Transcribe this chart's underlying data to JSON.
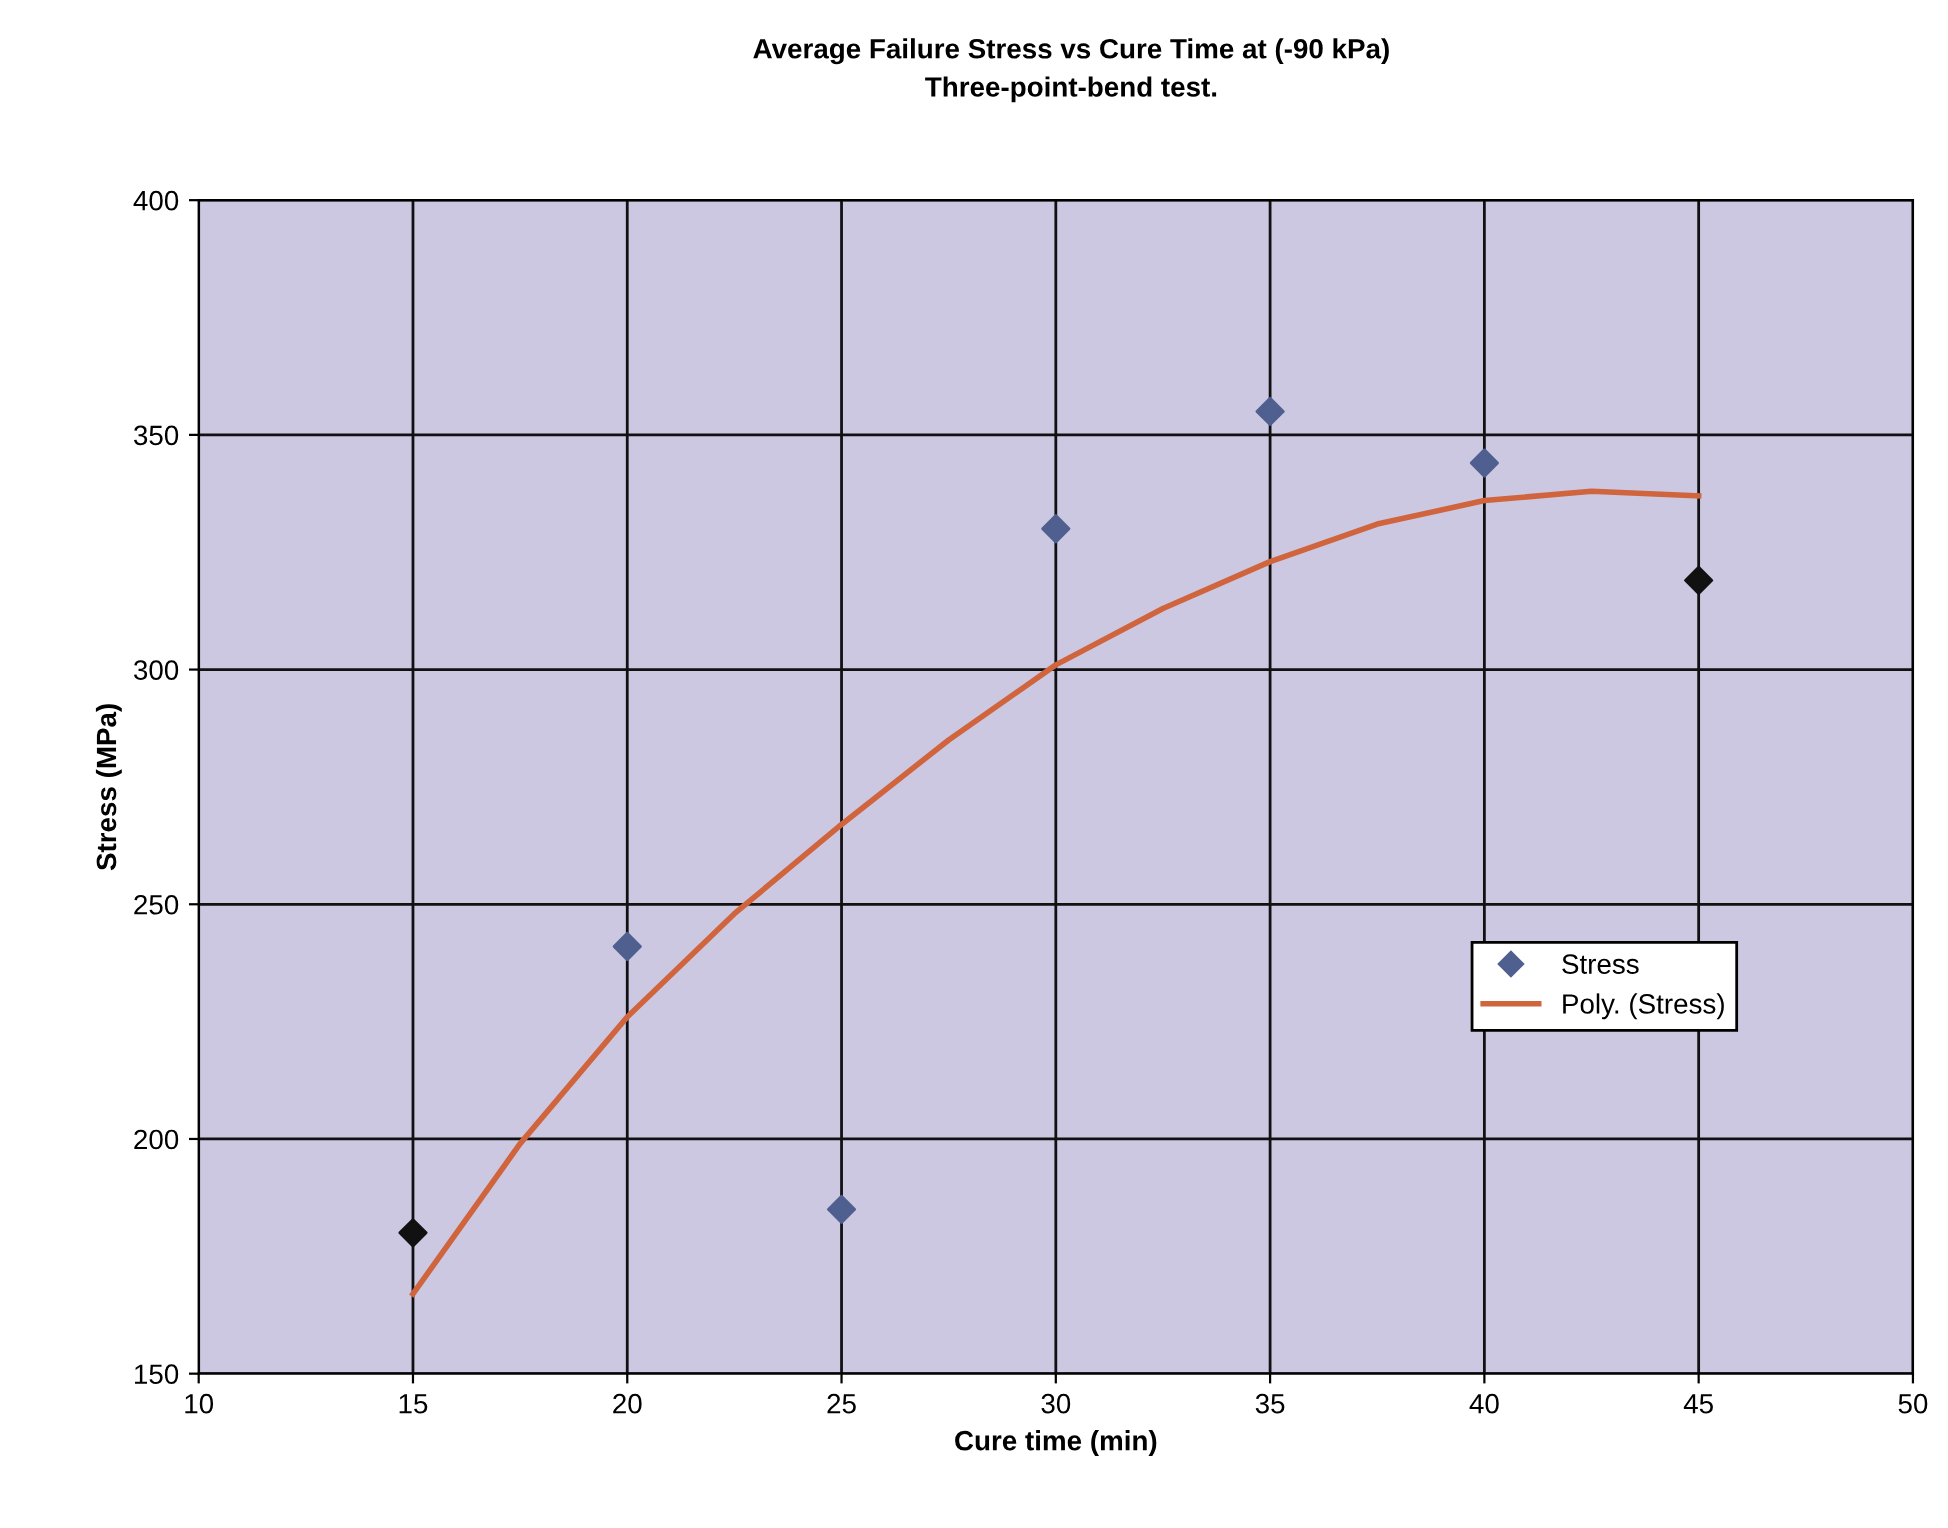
{
  "chart_data": {
    "type": "scatter",
    "title": "Average Failure Stress vs Cure Time at (-90 kPa)",
    "subtitle": "Three-point-bend test.",
    "xlabel": "Cure time (min)",
    "ylabel": "Stress (MPa)",
    "x": [
      15,
      20,
      25,
      30,
      35,
      40,
      45
    ],
    "series": [
      {
        "name": "Stress",
        "color": "#4f5f8f",
        "colors": [
          "#111111",
          "#4f5f8f",
          "#4f5f8f",
          "#4f5f8f",
          "#4f5f8f",
          "#4f5f8f",
          "#111111"
        ],
        "marker": "diamond",
        "values": [
          180,
          241,
          185,
          330,
          355,
          344,
          319
        ]
      },
      {
        "name": "Poly. (Stress)",
        "type": "line",
        "color": "#d0643c",
        "x": [
          15,
          17.5,
          20,
          22.5,
          25,
          27.5,
          30,
          32.5,
          35,
          37.5,
          40,
          42.5,
          45
        ],
        "values": [
          167,
          199,
          226,
          248,
          267,
          285,
          301,
          313,
          323,
          331,
          336,
          338,
          337
        ]
      }
    ],
    "xlim": [
      10,
      50
    ],
    "xticks": [
      10,
      15,
      20,
      25,
      30,
      35,
      40,
      45,
      50
    ],
    "ylim": [
      150,
      400
    ],
    "yticks": [
      150,
      200,
      250,
      300,
      350,
      400
    ],
    "grid": true,
    "legend": "right",
    "line_style": "solid"
  }
}
